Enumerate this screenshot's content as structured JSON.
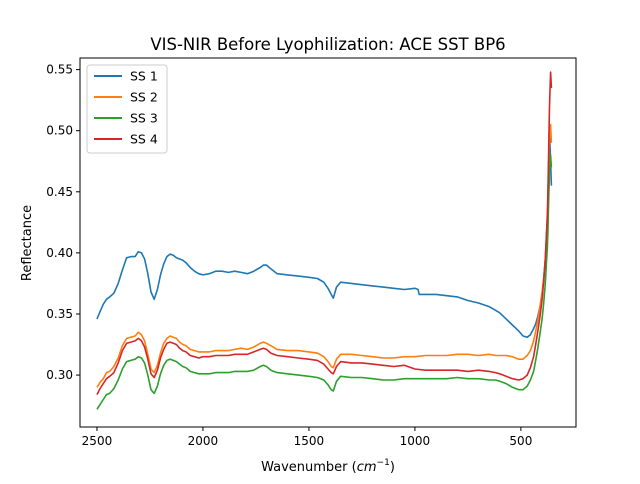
{
  "chart_data": {
    "type": "line",
    "title": "VIS-NIR Before Lyophilization: ACE SST BP6",
    "xlabel_main": "Wavenumber (",
    "xlabel_math": "cm",
    "xlabel_sup": "−1",
    "xlabel_close": ")",
    "ylabel": "Reflectance",
    "xlim": [
      2580,
      240
    ],
    "ylim": [
      0.2575,
      0.5595
    ],
    "x_ticks": [
      {
        "value": 2500,
        "label": "2500"
      },
      {
        "value": 2000,
        "label": "2000"
      },
      {
        "value": 1500,
        "label": "1500"
      },
      {
        "value": 1000,
        "label": "1000"
      },
      {
        "value": 500,
        "label": "500"
      }
    ],
    "y_ticks": [
      {
        "value": 0.3,
        "label": "0.30"
      },
      {
        "value": 0.35,
        "label": "0.35"
      },
      {
        "value": 0.4,
        "label": "0.40"
      },
      {
        "value": 0.45,
        "label": "0.45"
      },
      {
        "value": 0.5,
        "label": "0.50"
      },
      {
        "value": 0.55,
        "label": "0.55"
      }
    ],
    "grid": false,
    "legend_position": "upper-left",
    "series": [
      {
        "name": "SS 1",
        "color": "#1f77b4",
        "x": [
          2500,
          2485,
          2470,
          2455,
          2440,
          2420,
          2400,
          2380,
          2360,
          2340,
          2320,
          2305,
          2290,
          2275,
          2260,
          2245,
          2230,
          2215,
          2200,
          2185,
          2170,
          2155,
          2140,
          2125,
          2110,
          2095,
          2080,
          2060,
          2040,
          2020,
          2000,
          1970,
          1940,
          1910,
          1880,
          1850,
          1820,
          1790,
          1760,
          1730,
          1715,
          1700,
          1680,
          1650,
          1600,
          1550,
          1500,
          1460,
          1430,
          1410,
          1395,
          1385,
          1370,
          1350,
          1300,
          1250,
          1200,
          1150,
          1100,
          1050,
          1000,
          985,
          980,
          950,
          900,
          850,
          800,
          750,
          700,
          650,
          620,
          600,
          570,
          540,
          510,
          490,
          470,
          455,
          440,
          430,
          420,
          410,
          400,
          392,
          385,
          380,
          375,
          372,
          370,
          368,
          365,
          360,
          356
        ],
        "y": [
          0.346,
          0.352,
          0.358,
          0.362,
          0.364,
          0.367,
          0.375,
          0.386,
          0.396,
          0.397,
          0.397,
          0.401,
          0.4,
          0.395,
          0.383,
          0.368,
          0.362,
          0.37,
          0.382,
          0.391,
          0.397,
          0.399,
          0.398,
          0.396,
          0.395,
          0.394,
          0.392,
          0.388,
          0.385,
          0.383,
          0.382,
          0.383,
          0.385,
          0.385,
          0.384,
          0.385,
          0.384,
          0.383,
          0.385,
          0.388,
          0.39,
          0.39,
          0.387,
          0.383,
          0.382,
          0.381,
          0.38,
          0.379,
          0.376,
          0.371,
          0.366,
          0.363,
          0.372,
          0.376,
          0.375,
          0.374,
          0.373,
          0.372,
          0.371,
          0.37,
          0.371,
          0.37,
          0.366,
          0.366,
          0.366,
          0.365,
          0.364,
          0.361,
          0.359,
          0.356,
          0.353,
          0.351,
          0.346,
          0.341,
          0.336,
          0.332,
          0.331,
          0.333,
          0.338,
          0.342,
          0.348,
          0.356,
          0.366,
          0.38,
          0.395,
          0.41,
          0.428,
          0.445,
          0.462,
          0.48,
          0.498,
          0.475,
          0.455
        ]
      },
      {
        "name": "SS 2",
        "color": "#ff7f0e",
        "x": [
          2500,
          2485,
          2470,
          2455,
          2440,
          2420,
          2400,
          2380,
          2360,
          2340,
          2320,
          2305,
          2290,
          2275,
          2260,
          2245,
          2230,
          2215,
          2200,
          2185,
          2170,
          2155,
          2140,
          2125,
          2110,
          2095,
          2080,
          2060,
          2040,
          2020,
          2000,
          1970,
          1940,
          1910,
          1880,
          1850,
          1820,
          1790,
          1760,
          1730,
          1715,
          1700,
          1680,
          1650,
          1600,
          1550,
          1500,
          1460,
          1430,
          1410,
          1395,
          1385,
          1370,
          1350,
          1300,
          1250,
          1200,
          1150,
          1100,
          1050,
          1000,
          950,
          900,
          850,
          800,
          750,
          700,
          650,
          620,
          600,
          570,
          540,
          510,
          490,
          470,
          455,
          440,
          430,
          420,
          410,
          400,
          392,
          385,
          380,
          375,
          372,
          370,
          368,
          365,
          360,
          356
        ],
        "y": [
          0.29,
          0.294,
          0.297,
          0.302,
          0.303,
          0.307,
          0.314,
          0.324,
          0.33,
          0.331,
          0.332,
          0.335,
          0.333,
          0.328,
          0.317,
          0.305,
          0.302,
          0.308,
          0.318,
          0.326,
          0.33,
          0.332,
          0.331,
          0.33,
          0.327,
          0.325,
          0.324,
          0.321,
          0.32,
          0.319,
          0.319,
          0.319,
          0.32,
          0.32,
          0.32,
          0.321,
          0.322,
          0.321,
          0.323,
          0.326,
          0.327,
          0.326,
          0.324,
          0.321,
          0.32,
          0.32,
          0.319,
          0.318,
          0.315,
          0.311,
          0.307,
          0.306,
          0.313,
          0.317,
          0.317,
          0.316,
          0.315,
          0.314,
          0.314,
          0.315,
          0.315,
          0.316,
          0.316,
          0.316,
          0.317,
          0.317,
          0.316,
          0.317,
          0.316,
          0.316,
          0.316,
          0.315,
          0.313,
          0.313,
          0.316,
          0.32,
          0.328,
          0.336,
          0.345,
          0.356,
          0.368,
          0.38,
          0.394,
          0.41,
          0.428,
          0.445,
          0.462,
          0.48,
          0.498,
          0.505,
          0.49
        ]
      },
      {
        "name": "SS 3",
        "color": "#2ca02c",
        "x": [
          2500,
          2485,
          2470,
          2455,
          2440,
          2420,
          2400,
          2380,
          2360,
          2340,
          2320,
          2305,
          2290,
          2275,
          2260,
          2245,
          2230,
          2215,
          2200,
          2185,
          2170,
          2155,
          2140,
          2125,
          2110,
          2095,
          2080,
          2060,
          2040,
          2020,
          2000,
          1970,
          1940,
          1910,
          1880,
          1850,
          1820,
          1790,
          1760,
          1730,
          1715,
          1700,
          1680,
          1650,
          1600,
          1550,
          1500,
          1460,
          1430,
          1410,
          1395,
          1385,
          1370,
          1350,
          1300,
          1250,
          1200,
          1150,
          1100,
          1050,
          1000,
          950,
          900,
          850,
          800,
          750,
          700,
          650,
          620,
          600,
          570,
          540,
          510,
          490,
          470,
          455,
          440,
          430,
          420,
          410,
          400,
          392,
          385,
          380,
          375,
          372,
          370,
          368,
          365,
          360,
          356
        ],
        "y": [
          0.272,
          0.276,
          0.28,
          0.284,
          0.285,
          0.289,
          0.296,
          0.305,
          0.311,
          0.312,
          0.313,
          0.315,
          0.314,
          0.31,
          0.3,
          0.288,
          0.285,
          0.291,
          0.301,
          0.308,
          0.312,
          0.313,
          0.312,
          0.311,
          0.309,
          0.307,
          0.306,
          0.303,
          0.302,
          0.301,
          0.301,
          0.301,
          0.302,
          0.302,
          0.302,
          0.303,
          0.303,
          0.303,
          0.304,
          0.307,
          0.308,
          0.307,
          0.304,
          0.302,
          0.301,
          0.3,
          0.299,
          0.298,
          0.296,
          0.292,
          0.288,
          0.287,
          0.295,
          0.299,
          0.298,
          0.298,
          0.297,
          0.296,
          0.296,
          0.297,
          0.297,
          0.297,
          0.297,
          0.297,
          0.298,
          0.297,
          0.297,
          0.296,
          0.296,
          0.295,
          0.293,
          0.29,
          0.288,
          0.288,
          0.291,
          0.296,
          0.303,
          0.312,
          0.322,
          0.334,
          0.346,
          0.36,
          0.375,
          0.39,
          0.405,
          0.42,
          0.435,
          0.45,
          0.465,
          0.48,
          0.47
        ]
      },
      {
        "name": "SS 4",
        "color": "#d62728",
        "x": [
          2500,
          2485,
          2470,
          2455,
          2440,
          2420,
          2400,
          2380,
          2360,
          2340,
          2320,
          2305,
          2290,
          2275,
          2260,
          2245,
          2230,
          2215,
          2200,
          2185,
          2170,
          2155,
          2140,
          2125,
          2110,
          2095,
          2080,
          2060,
          2040,
          2020,
          2000,
          1970,
          1940,
          1910,
          1880,
          1850,
          1820,
          1790,
          1760,
          1730,
          1715,
          1700,
          1680,
          1650,
          1600,
          1550,
          1500,
          1460,
          1430,
          1410,
          1395,
          1385,
          1370,
          1350,
          1300,
          1250,
          1200,
          1150,
          1100,
          1050,
          1000,
          950,
          900,
          850,
          800,
          750,
          700,
          650,
          620,
          600,
          570,
          540,
          510,
          490,
          470,
          455,
          440,
          430,
          420,
          410,
          400,
          392,
          385,
          380,
          375,
          372,
          370,
          368,
          365,
          360,
          356
        ],
        "y": [
          0.284,
          0.289,
          0.293,
          0.297,
          0.299,
          0.302,
          0.31,
          0.32,
          0.326,
          0.327,
          0.328,
          0.33,
          0.328,
          0.323,
          0.313,
          0.301,
          0.298,
          0.304,
          0.314,
          0.321,
          0.326,
          0.327,
          0.326,
          0.325,
          0.322,
          0.32,
          0.319,
          0.316,
          0.315,
          0.314,
          0.315,
          0.315,
          0.316,
          0.316,
          0.316,
          0.317,
          0.317,
          0.317,
          0.319,
          0.321,
          0.322,
          0.321,
          0.318,
          0.316,
          0.315,
          0.314,
          0.313,
          0.312,
          0.309,
          0.305,
          0.302,
          0.301,
          0.307,
          0.311,
          0.31,
          0.31,
          0.309,
          0.308,
          0.307,
          0.308,
          0.305,
          0.304,
          0.304,
          0.304,
          0.304,
          0.303,
          0.304,
          0.303,
          0.302,
          0.301,
          0.299,
          0.297,
          0.296,
          0.297,
          0.3,
          0.306,
          0.315,
          0.325,
          0.336,
          0.348,
          0.362,
          0.378,
          0.395,
          0.413,
          0.432,
          0.452,
          0.472,
          0.495,
          0.52,
          0.548,
          0.535
        ]
      }
    ]
  }
}
